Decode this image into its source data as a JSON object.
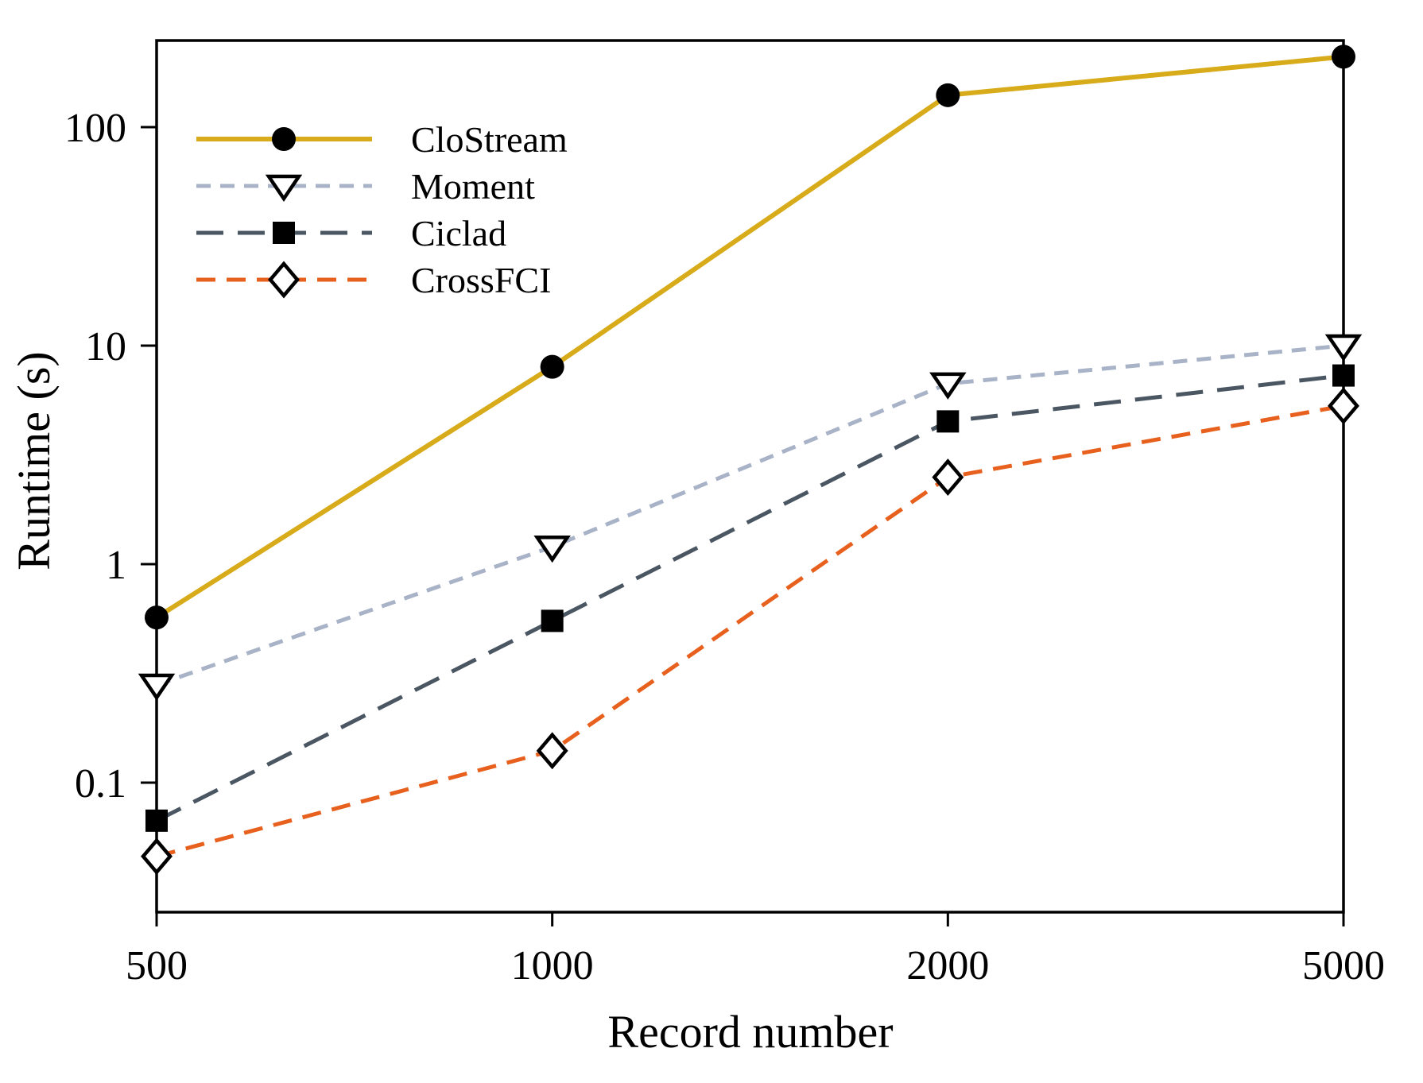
{
  "chart_data": {
    "type": "line",
    "title": "",
    "xlabel": "Record number",
    "ylabel": "Runtime (s)",
    "x_scale": "categorical",
    "y_scale": "log",
    "categories": [
      500,
      1000,
      2000,
      5000
    ],
    "x_tick_labels": [
      "500",
      "1000",
      "2000",
      "5000"
    ],
    "y_ticks": [
      100,
      10,
      1,
      0.1
    ],
    "y_tick_labels": [
      "100",
      "10",
      "1",
      "0.1"
    ],
    "ylim": [
      0.026,
      240
    ],
    "grid": false,
    "legend_position": "upper-left-inside",
    "axis_color": "#000000",
    "text_color": "#000000",
    "background_color": "#ffffff",
    "series": [
      {
        "name": "CloStream",
        "values": [
          0.57,
          8,
          140,
          210
        ],
        "color": "#d7ab1a",
        "line_style": "solid",
        "line_width": 6,
        "marker": "filled-circle",
        "marker_color": "#000000"
      },
      {
        "name": "Moment",
        "values": [
          0.28,
          1.2,
          6.7,
          10
        ],
        "color": "#a9b3c7",
        "line_style": "short-dash",
        "line_width": 5,
        "marker": "open-triangle-down",
        "marker_color": "#000000"
      },
      {
        "name": "Ciclad",
        "values": [
          0.067,
          0.55,
          4.5,
          7.3
        ],
        "color": "#4b5663",
        "line_style": "long-dash",
        "line_width": 5,
        "marker": "filled-square",
        "marker_color": "#000000"
      },
      {
        "name": "CrossFCI",
        "values": [
          0.046,
          0.14,
          2.5,
          5.3
        ],
        "color": "#e7601d",
        "line_style": "dashed",
        "line_width": 5,
        "marker": "open-diamond",
        "marker_color": "#000000"
      }
    ]
  }
}
